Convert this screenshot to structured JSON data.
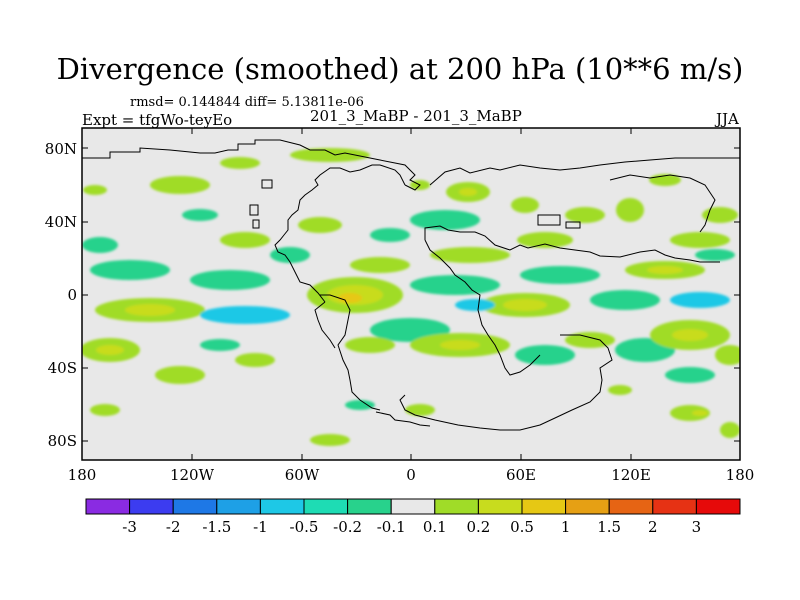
{
  "title": "Divergence (smoothed) at 200 hPa (10**6 m/s)",
  "stats": "rmsd= 0.144844 diff= 5.13811e-06",
  "experiment": "Expt = tfgWo-teyEo",
  "runs": "201_3_MaBP - 201_3_MaBP",
  "season": "JJA",
  "lat_labels": [
    "80N",
    "40N",
    "0",
    "40S",
    "80S"
  ],
  "lon_labels": [
    "180",
    "120W",
    "60W",
    "0",
    "60E",
    "120E",
    "180"
  ],
  "colorbar": {
    "labels": [
      "-3",
      "-2",
      "-1.5",
      "-1",
      "-0.5",
      "-0.2",
      "-0.1",
      "0.1",
      "0.2",
      "0.5",
      "1",
      "1.5",
      "2",
      "3"
    ],
    "colors": [
      "#8a2be2",
      "#3c3cf0",
      "#1e78e6",
      "#1ea0e6",
      "#1ec8e6",
      "#1edcb4",
      "#28d28c",
      "#e8e8e8",
      "#a0dc28",
      "#c8dc1e",
      "#e6c814",
      "#e6a014",
      "#e66414",
      "#e63214",
      "#e60a0a"
    ]
  },
  "map_colors": {
    "background": "#e8e8e8",
    "green": "#a0dc28",
    "yellow": "#c8dc1e",
    "orange": "#e6c814",
    "teal": "#28d28c",
    "cyan": "#1ec8e6",
    "coast": "#000000"
  }
}
